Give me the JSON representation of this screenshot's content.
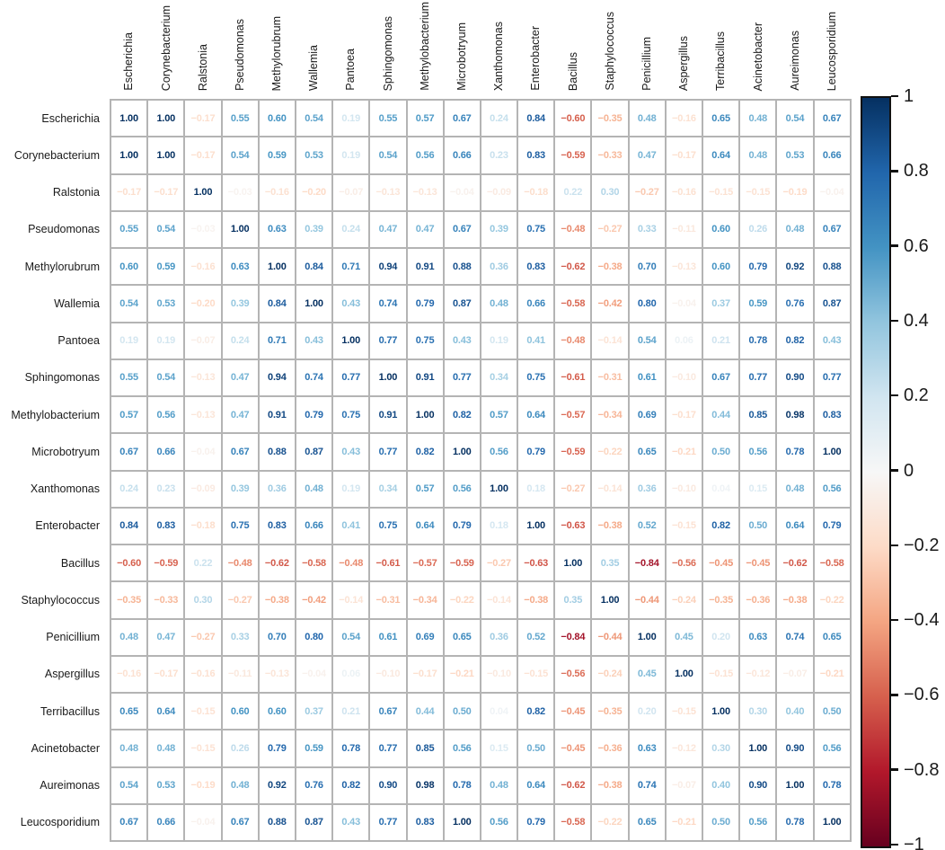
{
  "figure_title": "",
  "chart_data": {
    "type": "heatmap",
    "subtype": "correlation-matrix",
    "title": "",
    "labels": [
      "Escherichia",
      "Corynebacterium",
      "Ralstonia",
      "Pseudomonas",
      "Methylorubrum",
      "Wallemia",
      "Pantoea",
      "Sphingomonas",
      "Methylobacterium",
      "Microbotryum",
      "Xanthomonas",
      "Enterobacter",
      "Bacillus",
      "Staphylococcus",
      "Penicillium",
      "Aspergillus",
      "Terribacillus",
      "Acinetobacter",
      "Aureimonas",
      "Leucosporidium"
    ],
    "matrix": [
      [
        1.0,
        1.0,
        -0.17,
        0.55,
        0.6,
        0.54,
        0.19,
        0.55,
        0.57,
        0.67,
        0.24,
        0.84,
        -0.6,
        -0.35,
        0.48,
        -0.16,
        0.65,
        0.48,
        0.54,
        0.67
      ],
      [
        1.0,
        1.0,
        -0.17,
        0.54,
        0.59,
        0.53,
        0.19,
        0.54,
        0.56,
        0.66,
        0.23,
        0.83,
        -0.59,
        -0.33,
        0.47,
        -0.17,
        0.64,
        0.48,
        0.53,
        0.66
      ],
      [
        -0.17,
        -0.17,
        1.0,
        -0.03,
        -0.16,
        -0.2,
        -0.07,
        -0.13,
        -0.13,
        -0.04,
        -0.09,
        -0.18,
        0.22,
        0.3,
        -0.27,
        -0.16,
        -0.15,
        -0.15,
        -0.19,
        -0.04
      ],
      [
        0.55,
        0.54,
        -0.03,
        1.0,
        0.63,
        0.39,
        0.24,
        0.47,
        0.47,
        0.67,
        0.39,
        0.75,
        -0.48,
        -0.27,
        0.33,
        -0.11,
        0.6,
        0.26,
        0.48,
        0.67
      ],
      [
        0.6,
        0.59,
        -0.16,
        0.63,
        1.0,
        0.84,
        0.71,
        0.94,
        0.91,
        0.88,
        0.36,
        0.83,
        -0.62,
        -0.38,
        0.7,
        -0.13,
        0.6,
        0.79,
        0.92,
        0.88
      ],
      [
        0.54,
        0.53,
        -0.2,
        0.39,
        0.84,
        1.0,
        0.43,
        0.74,
        0.79,
        0.87,
        0.48,
        0.66,
        -0.58,
        -0.42,
        0.8,
        -0.04,
        0.37,
        0.59,
        0.76,
        0.87
      ],
      [
        0.19,
        0.19,
        -0.07,
        0.24,
        0.71,
        0.43,
        1.0,
        0.77,
        0.75,
        0.43,
        0.19,
        0.41,
        -0.48,
        -0.14,
        0.54,
        0.06,
        0.21,
        0.78,
        0.82,
        0.43
      ],
      [
        0.55,
        0.54,
        -0.13,
        0.47,
        0.94,
        0.74,
        0.77,
        1.0,
        0.91,
        0.77,
        0.34,
        0.75,
        -0.61,
        -0.31,
        0.61,
        -0.1,
        0.67,
        0.77,
        0.9,
        0.77
      ],
      [
        0.57,
        0.56,
        -0.13,
        0.47,
        0.91,
        0.79,
        0.75,
        0.91,
        1.0,
        0.82,
        0.57,
        0.64,
        -0.57,
        -0.34,
        0.69,
        -0.17,
        0.44,
        0.85,
        0.98,
        0.83
      ],
      [
        0.67,
        0.66,
        -0.04,
        0.67,
        0.88,
        0.87,
        0.43,
        0.77,
        0.82,
        1.0,
        0.56,
        0.79,
        -0.59,
        -0.22,
        0.65,
        -0.21,
        0.5,
        0.56,
        0.78,
        1.0
      ],
      [
        0.24,
        0.23,
        -0.09,
        0.39,
        0.36,
        0.48,
        0.19,
        0.34,
        0.57,
        0.56,
        1.0,
        0.18,
        -0.27,
        -0.14,
        0.36,
        -0.1,
        0.04,
        0.15,
        0.48,
        0.56
      ],
      [
        0.84,
        0.83,
        -0.18,
        0.75,
        0.83,
        0.66,
        0.41,
        0.75,
        0.64,
        0.79,
        0.18,
        1.0,
        -0.63,
        -0.38,
        0.52,
        -0.15,
        0.82,
        0.5,
        0.64,
        0.79
      ],
      [
        -0.6,
        -0.59,
        0.22,
        -0.48,
        -0.62,
        -0.58,
        -0.48,
        -0.61,
        -0.57,
        -0.59,
        -0.27,
        -0.63,
        1.0,
        0.35,
        -0.84,
        -0.56,
        -0.45,
        -0.45,
        -0.62,
        -0.58
      ],
      [
        -0.35,
        -0.33,
        0.3,
        -0.27,
        -0.38,
        -0.42,
        -0.14,
        -0.31,
        -0.34,
        -0.22,
        -0.14,
        -0.38,
        0.35,
        1.0,
        -0.44,
        -0.24,
        -0.35,
        -0.36,
        -0.38,
        -0.22
      ],
      [
        0.48,
        0.47,
        -0.27,
        0.33,
        0.7,
        0.8,
        0.54,
        0.61,
        0.69,
        0.65,
        0.36,
        0.52,
        -0.84,
        -0.44,
        1.0,
        0.45,
        0.2,
        0.63,
        0.74,
        0.65
      ],
      [
        -0.16,
        -0.17,
        -0.16,
        -0.11,
        -0.13,
        -0.04,
        0.06,
        -0.1,
        -0.17,
        -0.21,
        -0.1,
        -0.15,
        -0.56,
        -0.24,
        0.45,
        1.0,
        -0.15,
        -0.12,
        -0.07,
        -0.21
      ],
      [
        0.65,
        0.64,
        -0.15,
        0.6,
        0.6,
        0.37,
        0.21,
        0.67,
        0.44,
        0.5,
        0.04,
        0.82,
        -0.45,
        -0.35,
        0.2,
        -0.15,
        1.0,
        0.3,
        0.4,
        0.5
      ],
      [
        0.48,
        0.48,
        -0.15,
        0.26,
        0.79,
        0.59,
        0.78,
        0.77,
        0.85,
        0.56,
        0.15,
        0.5,
        -0.45,
        -0.36,
        0.63,
        -0.12,
        0.3,
        1.0,
        0.9,
        0.56
      ],
      [
        0.54,
        0.53,
        -0.19,
        0.48,
        0.92,
        0.76,
        0.82,
        0.9,
        0.98,
        0.78,
        0.48,
        0.64,
        -0.62,
        -0.38,
        0.74,
        -0.07,
        0.4,
        0.9,
        1.0,
        0.78
      ],
      [
        0.67,
        0.66,
        -0.04,
        0.67,
        0.88,
        0.87,
        0.43,
        0.77,
        0.83,
        1.0,
        0.56,
        0.79,
        -0.58,
        -0.22,
        0.65,
        -0.21,
        0.5,
        0.56,
        0.78,
        1.0
      ]
    ],
    "value_format": "0.00",
    "colorbar": {
      "position": "right",
      "range": [
        -1,
        1
      ],
      "tick_labels": [
        "1",
        "0.8",
        "0.6",
        "0.4",
        "0.2",
        "0",
        "−0.2",
        "−0.4",
        "−0.6",
        "−0.8",
        "−1"
      ],
      "palette_name": "RdBu",
      "palette_stops_neg_to_pos": [
        "#67001F",
        "#B2182B",
        "#D6604D",
        "#F4A582",
        "#FDDBC7",
        "#F7F7F7",
        "#D1E5F0",
        "#92C5DE",
        "#4393C3",
        "#2166AC",
        "#053061"
      ]
    },
    "grid_color": "#B4B4B4",
    "background_color": "#FFFFFF"
  }
}
